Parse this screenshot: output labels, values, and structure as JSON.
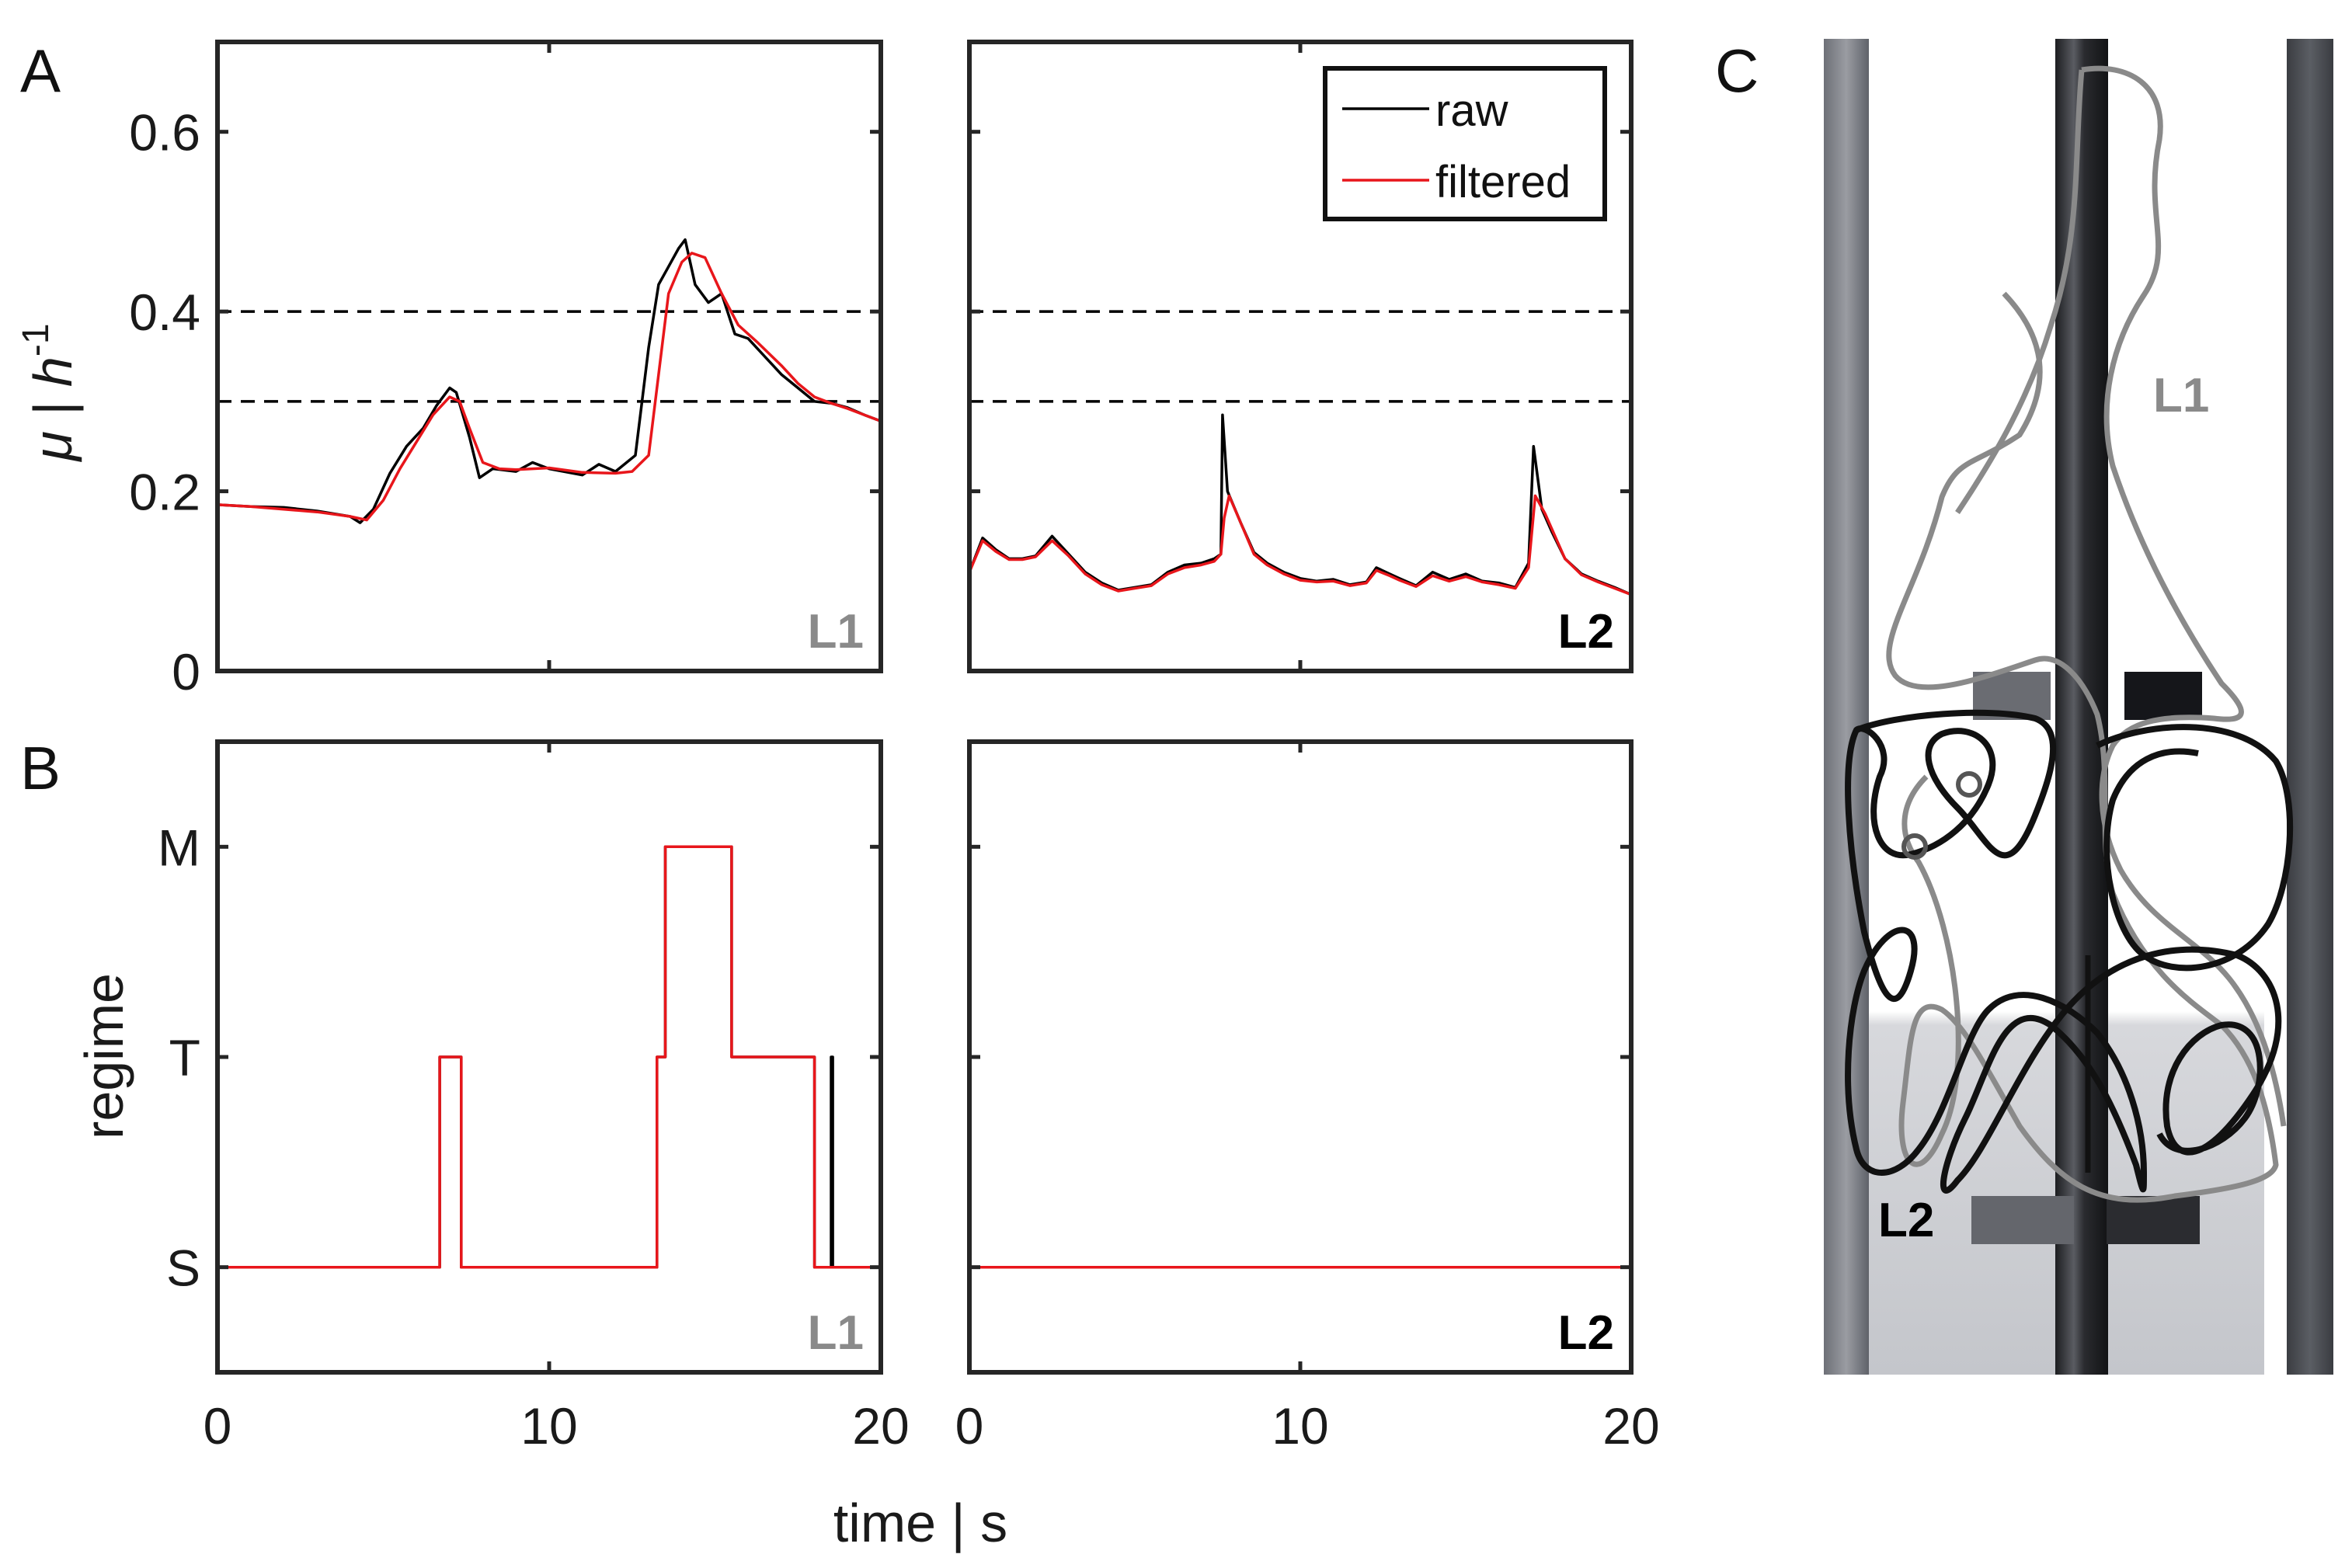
{
  "panels": {
    "a": "A",
    "b": "B",
    "c": "C"
  },
  "colors": {
    "raw": "#000000",
    "filtered": "#e8161b",
    "l1": "#8a8a8a",
    "l2": "#000000",
    "threshold": "#000000"
  },
  "shared": {
    "xlabel": "time | s"
  },
  "legend": {
    "raw": "raw",
    "filtered": "filtered"
  },
  "thresholds": [
    0.3,
    0.4
  ],
  "chart_data": [
    {
      "id": "A-L1",
      "type": "line",
      "panel": "A",
      "corner_label": "L1",
      "ylabel_main": "μ | h",
      "ylabel_sup": "-1",
      "xlim": [
        0,
        20
      ],
      "ylim": [
        0,
        0.7
      ],
      "xticks": [
        0,
        10,
        20
      ],
      "yticks": [
        0,
        0.2,
        0.4,
        0.6
      ],
      "yticklabels": [
        "0",
        "0.2",
        "0.4",
        "0.6"
      ],
      "xticklabels": [
        "",
        "",
        ""
      ],
      "series": [
        {
          "name": "raw",
          "x": [
            0,
            1,
            2,
            3,
            4,
            4.3,
            4.7,
            5.2,
            5.7,
            6.2,
            6.6,
            7,
            7.2,
            7.6,
            7.9,
            8.3,
            9,
            9.5,
            10,
            11,
            11.5,
            12,
            12.6,
            13,
            13.3,
            13.6,
            13.9,
            14.1,
            14.4,
            14.8,
            15.2,
            15.6,
            16,
            16.5,
            17,
            17.5,
            18,
            18.5,
            19,
            19.5,
            20
          ],
          "y": [
            0.185,
            0.183,
            0.182,
            0.178,
            0.172,
            0.165,
            0.18,
            0.22,
            0.25,
            0.27,
            0.295,
            0.315,
            0.31,
            0.26,
            0.215,
            0.225,
            0.222,
            0.232,
            0.225,
            0.218,
            0.23,
            0.222,
            0.24,
            0.36,
            0.43,
            0.45,
            0.47,
            0.48,
            0.43,
            0.41,
            0.42,
            0.375,
            0.37,
            0.35,
            0.33,
            0.315,
            0.3,
            0.298,
            0.293,
            0.285,
            0.278
          ]
        },
        {
          "name": "filtered",
          "x": [
            0,
            1,
            2,
            3,
            4,
            4.5,
            5,
            5.5,
            6,
            6.5,
            7,
            7.3,
            7.6,
            8,
            8.5,
            9,
            10,
            11,
            12,
            12.5,
            13,
            13.3,
            13.6,
            14,
            14.3,
            14.7,
            15.2,
            15.7,
            16.3,
            17,
            17.5,
            18,
            18.5,
            19,
            19.5,
            20
          ],
          "y": [
            0.185,
            0.183,
            0.18,
            0.177,
            0.172,
            0.168,
            0.19,
            0.225,
            0.255,
            0.285,
            0.305,
            0.3,
            0.27,
            0.232,
            0.225,
            0.224,
            0.226,
            0.221,
            0.22,
            0.222,
            0.24,
            0.33,
            0.42,
            0.455,
            0.465,
            0.46,
            0.42,
            0.385,
            0.365,
            0.34,
            0.32,
            0.305,
            0.298,
            0.292,
            0.285,
            0.278
          ]
        }
      ]
    },
    {
      "id": "A-L2",
      "type": "line",
      "panel": "A",
      "corner_label": "L2",
      "xlim": [
        0,
        20
      ],
      "ylim": [
        0,
        0.7
      ],
      "xticks": [
        0,
        10,
        20
      ],
      "yticks": [
        0,
        0.2,
        0.4,
        0.6
      ],
      "series": [
        {
          "name": "raw",
          "x": [
            0,
            0.4,
            0.8,
            1.2,
            1.6,
            2,
            2.5,
            3,
            3.5,
            4,
            4.5,
            5,
            5.5,
            6,
            6.5,
            7,
            7.4,
            7.6,
            7.65,
            7.8,
            8.2,
            8.6,
            9,
            9.5,
            10,
            10.5,
            11,
            11.5,
            12,
            12.3,
            12.7,
            13,
            13.5,
            14,
            14.5,
            15,
            15.5,
            16,
            16.5,
            16.9,
            17.05,
            17.3,
            17.6,
            18,
            18.5,
            19,
            19.5,
            20
          ],
          "y": [
            0.11,
            0.148,
            0.135,
            0.125,
            0.125,
            0.128,
            0.15,
            0.13,
            0.11,
            0.098,
            0.09,
            0.093,
            0.096,
            0.11,
            0.118,
            0.12,
            0.125,
            0.13,
            0.285,
            0.2,
            0.165,
            0.132,
            0.12,
            0.11,
            0.103,
            0.1,
            0.102,
            0.096,
            0.099,
            0.115,
            0.108,
            0.103,
            0.095,
            0.11,
            0.102,
            0.108,
            0.1,
            0.098,
            0.093,
            0.12,
            0.25,
            0.18,
            0.155,
            0.125,
            0.108,
            0.1,
            0.093,
            0.085
          ]
        },
        {
          "name": "filtered",
          "x": [
            0,
            0.4,
            0.8,
            1.2,
            1.6,
            2,
            2.5,
            3,
            3.5,
            4,
            4.5,
            5,
            5.5,
            6,
            6.5,
            7,
            7.4,
            7.6,
            7.7,
            7.85,
            8.2,
            8.6,
            9,
            9.5,
            10,
            10.5,
            11,
            11.5,
            12,
            12.3,
            12.7,
            13,
            13.5,
            14,
            14.5,
            15,
            15.5,
            16,
            16.5,
            16.9,
            17.1,
            17.4,
            17.7,
            18,
            18.5,
            19,
            19.5,
            20
          ],
          "y": [
            0.11,
            0.145,
            0.133,
            0.124,
            0.124,
            0.127,
            0.145,
            0.128,
            0.108,
            0.096,
            0.089,
            0.092,
            0.095,
            0.108,
            0.115,
            0.118,
            0.122,
            0.13,
            0.17,
            0.195,
            0.165,
            0.13,
            0.118,
            0.108,
            0.101,
            0.099,
            0.1,
            0.095,
            0.098,
            0.112,
            0.106,
            0.101,
            0.094,
            0.106,
            0.1,
            0.105,
            0.099,
            0.096,
            0.092,
            0.115,
            0.195,
            0.175,
            0.15,
            0.125,
            0.107,
            0.099,
            0.092,
            0.085
          ]
        }
      ]
    },
    {
      "id": "B-L1",
      "type": "line",
      "panel": "B",
      "corner_label": "L1",
      "ylabel": "regime",
      "xlim": [
        0,
        20
      ],
      "ylim": [
        -0.5,
        2.5
      ],
      "xticks": [
        0,
        10,
        20
      ],
      "xticklabels": [
        "0",
        "10",
        "20"
      ],
      "yticks": [
        0,
        1,
        2
      ],
      "yticklabels": [
        "S",
        "T",
        "M"
      ],
      "series": [
        {
          "name": "raw",
          "x": [
            0,
            6.7,
            6.7,
            7.35,
            7.35,
            13.25,
            13.25,
            13.5,
            13.5,
            15.5,
            15.5,
            18.0,
            18.0,
            18.5,
            18.5,
            18.55,
            18.55,
            20
          ],
          "y": [
            0,
            0,
            1,
            1,
            0,
            0,
            1,
            1,
            2,
            2,
            1,
            1,
            0,
            0,
            1,
            1,
            0,
            0
          ]
        },
        {
          "name": "filtered",
          "x": [
            0,
            6.7,
            6.7,
            7.35,
            7.35,
            13.25,
            13.25,
            13.5,
            13.5,
            15.5,
            15.5,
            18.0,
            18.0,
            20
          ],
          "y": [
            0,
            0,
            1,
            1,
            0,
            0,
            1,
            1,
            2,
            2,
            1,
            1,
            0,
            0
          ]
        }
      ]
    },
    {
      "id": "B-L2",
      "type": "line",
      "panel": "B",
      "corner_label": "L2",
      "xlim": [
        0,
        20
      ],
      "ylim": [
        -0.5,
        2.5
      ],
      "xticks": [
        0,
        10,
        20
      ],
      "xticklabels": [
        "0",
        "10",
        "20"
      ],
      "yticks": [
        0,
        1,
        2
      ],
      "series": [
        {
          "name": "raw",
          "x": [
            0,
            20
          ],
          "y": [
            0,
            0
          ]
        },
        {
          "name": "filtered",
          "x": [
            0,
            20
          ],
          "y": [
            0,
            0
          ]
        }
      ]
    }
  ],
  "image_c": {
    "label_l1": "L1",
    "label_l2": "L2"
  }
}
